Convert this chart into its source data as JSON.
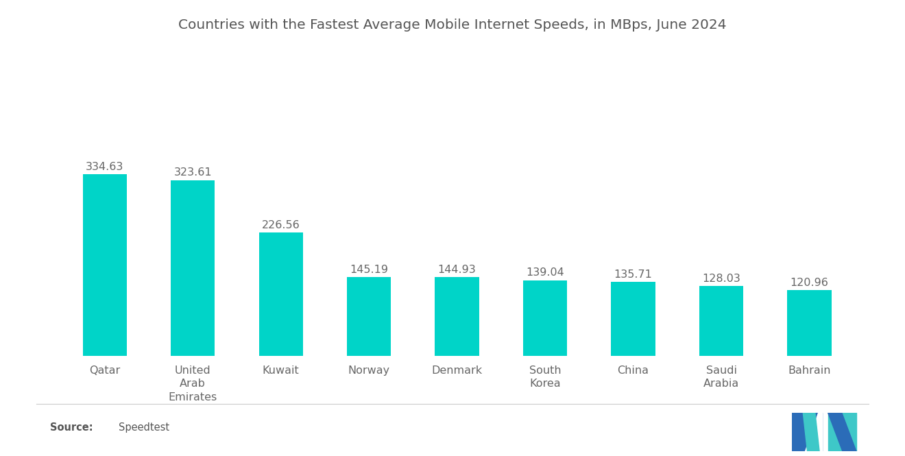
{
  "title": "Countries with the Fastest Average Mobile Internet Speeds, in MBps, June 2024",
  "categories": [
    "Qatar",
    "United\nArab\nEmirates",
    "Kuwait",
    "Norway",
    "Denmark",
    "South\nKorea",
    "China",
    "Saudi\nArabia",
    "Bahrain"
  ],
  "values": [
    334.63,
    323.61,
    226.56,
    145.19,
    144.93,
    139.04,
    135.71,
    128.03,
    120.96
  ],
  "bar_color": "#00D4C8",
  "background_color": "#ffffff",
  "title_fontsize": 14.5,
  "label_fontsize": 11.5,
  "value_fontsize": 11.5,
  "ylim": [
    0,
    420
  ],
  "bar_width": 0.5,
  "logo_blue": "#2B6CB8",
  "logo_teal": "#3EC8C8"
}
